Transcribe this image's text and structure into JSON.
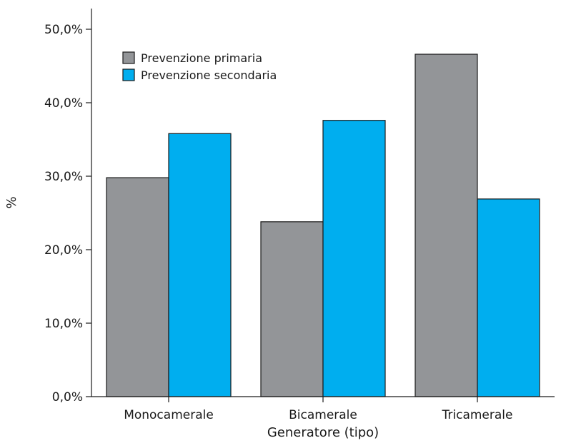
{
  "chart_data": {
    "type": "bar",
    "title": "",
    "xlabel": "Generatore (tipo)",
    "ylabel": "%",
    "categories": [
      "Monocamerale",
      "Bicamerale",
      "Tricamerale"
    ],
    "series": [
      {
        "name": "Prevenzione primaria",
        "color": "#939598",
        "values": [
          29.8,
          23.8,
          46.6
        ]
      },
      {
        "name": "Prevenzione secondaria",
        "color": "#00aeef",
        "values": [
          35.8,
          37.6,
          26.9
        ]
      }
    ],
    "ylim": [
      0,
      50
    ],
    "yticks": [
      0,
      10,
      20,
      30,
      40,
      50
    ],
    "ytick_labels": [
      "0,0%",
      "10,0%",
      "20,0%",
      "30,0%",
      "40,0%",
      "50,0%"
    ],
    "grid": false,
    "legend_position": "top-left"
  }
}
